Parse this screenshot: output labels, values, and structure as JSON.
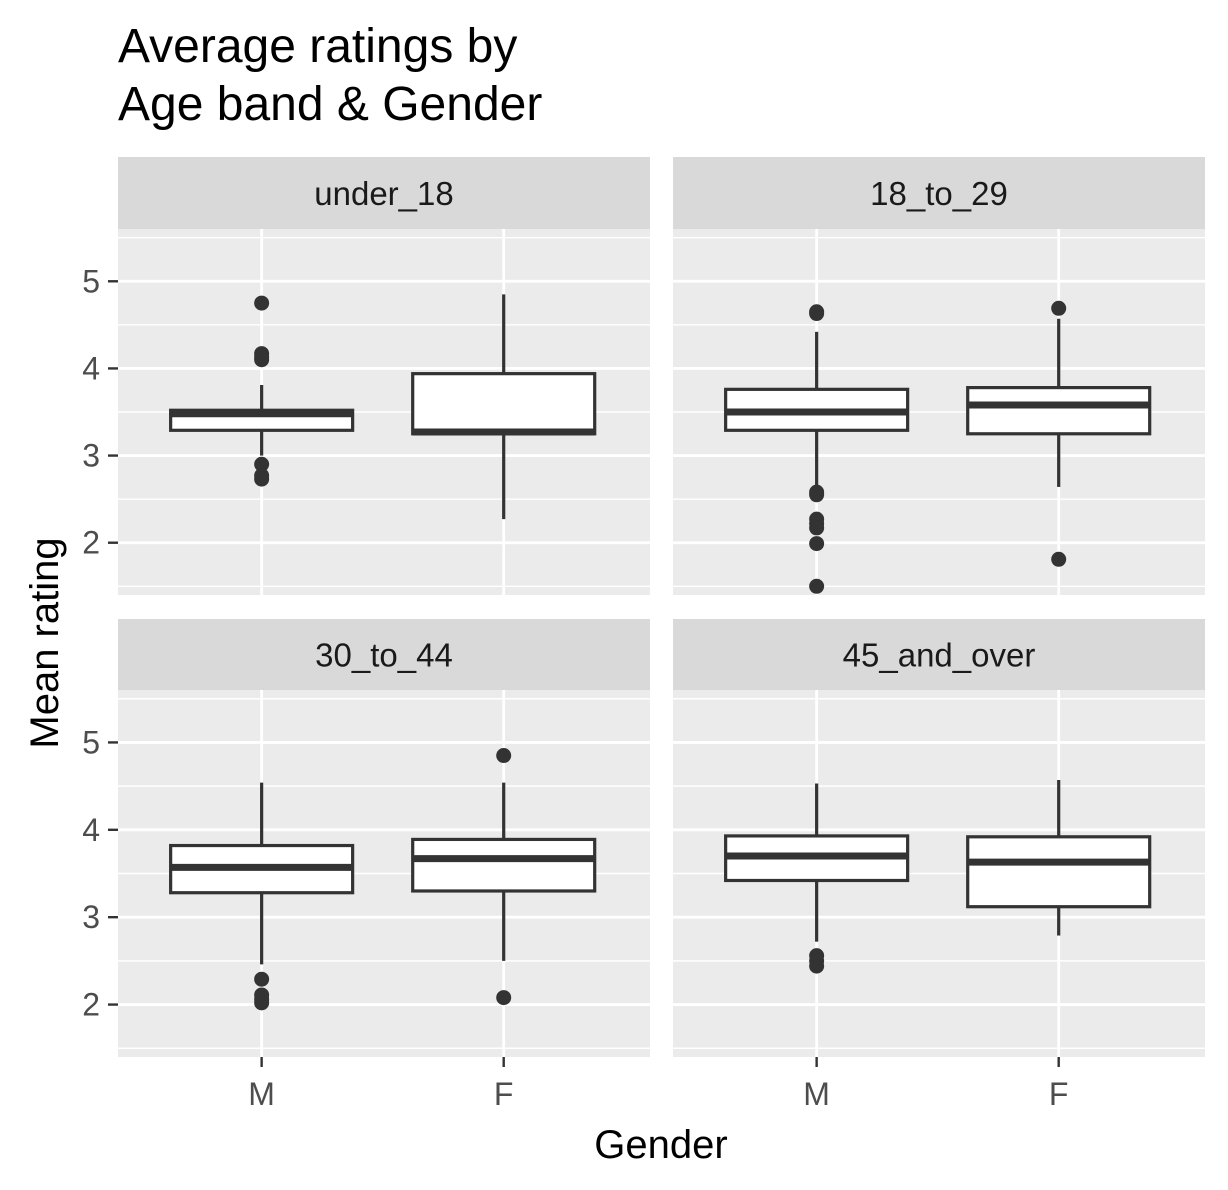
{
  "chart_data": {
    "type": "boxplot",
    "title_lines": [
      "Average ratings by",
      "Age band & Gender"
    ],
    "xlabel": "Gender",
    "ylabel": "Mean rating",
    "categories": [
      "M",
      "F"
    ],
    "y_ticks": [
      2,
      3,
      4,
      5
    ],
    "ylim": [
      1.4,
      5.6
    ],
    "grid": true,
    "facet_layout": "2x2",
    "colors": {
      "panel_bg": "#ebebeb",
      "strip_bg": "#d9d9d9",
      "grid": "#ffffff",
      "box_fill": "#ffffff",
      "box_stroke": "#333333",
      "outlier": "#333333"
    },
    "panels": [
      {
        "label": "under_18",
        "boxes": [
          {
            "category": "M",
            "lower_whisker": 3.0,
            "q1": 3.29,
            "median": 3.48,
            "q3": 3.52,
            "upper_whisker": 3.81,
            "outliers": [
              4.75,
              4.17,
              4.13,
              4.1,
              2.9,
              2.77,
              2.73
            ]
          },
          {
            "category": "F",
            "lower_whisker": 2.27,
            "q1": 3.25,
            "median": 3.27,
            "q3": 3.94,
            "upper_whisker": 4.85,
            "outliers": []
          }
        ]
      },
      {
        "label": "18_to_29",
        "boxes": [
          {
            "category": "M",
            "lower_whisker": 2.6,
            "q1": 3.29,
            "median": 3.5,
            "q3": 3.76,
            "upper_whisker": 4.42,
            "outliers": [
              4.65,
              4.63,
              2.58,
              2.55,
              2.27,
              2.22,
              2.17,
              1.99,
              1.5
            ]
          },
          {
            "category": "F",
            "lower_whisker": 2.64,
            "q1": 3.25,
            "median": 3.58,
            "q3": 3.78,
            "upper_whisker": 4.57,
            "outliers": [
              4.69,
              1.81
            ]
          }
        ]
      },
      {
        "label": "30_to_44",
        "boxes": [
          {
            "category": "M",
            "lower_whisker": 2.46,
            "q1": 3.28,
            "median": 3.57,
            "q3": 3.82,
            "upper_whisker": 4.54,
            "outliers": [
              2.29,
              2.11,
              2.06,
              2.02
            ]
          },
          {
            "category": "F",
            "lower_whisker": 2.5,
            "q1": 3.3,
            "median": 3.67,
            "q3": 3.89,
            "upper_whisker": 4.54,
            "outliers": [
              4.85,
              2.08
            ]
          }
        ]
      },
      {
        "label": "45_and_over",
        "boxes": [
          {
            "category": "M",
            "lower_whisker": 2.72,
            "q1": 3.42,
            "median": 3.7,
            "q3": 3.93,
            "upper_whisker": 4.53,
            "outliers": [
              2.56,
              2.5,
              2.44
            ]
          },
          {
            "category": "F",
            "lower_whisker": 2.79,
            "q1": 3.12,
            "median": 3.63,
            "q3": 3.92,
            "upper_whisker": 4.57,
            "outliers": []
          }
        ]
      }
    ]
  }
}
